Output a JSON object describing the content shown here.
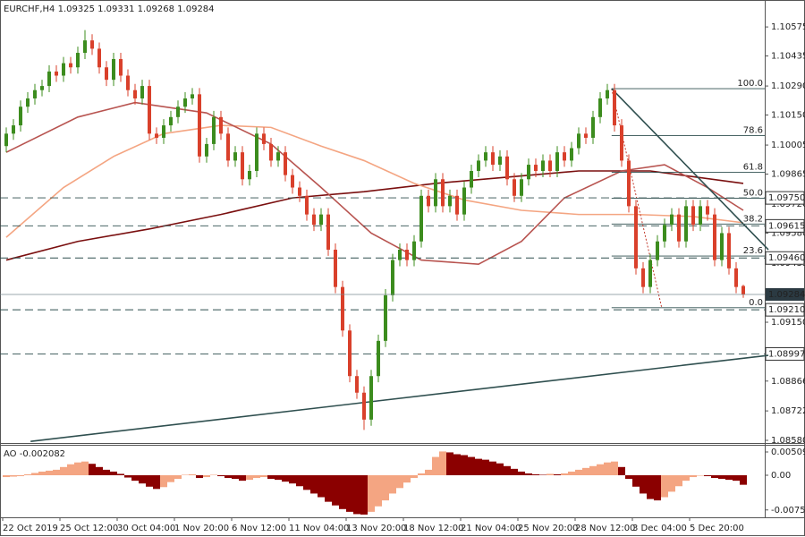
{
  "chart_data": [
    {
      "type": "candlestick",
      "title": "EURCHF,H4  1.09325 1.09331 1.09268 1.09284",
      "colors": {
        "up": "#3c8c1e",
        "down": "#d9402b",
        "trendline": "#2f4f4f",
        "level": "#2f4f4f",
        "fib": "#2f4f4f",
        "fib_base": "#c0392b"
      },
      "ylim": [
        1.08567,
        1.10705
      ],
      "yticks": [
        1.10575,
        1.10435,
        {
          "value": 1.1029,
          "label": "1.10290"
        },
        {
          "value": 1.1015,
          "label": "1.10150"
        },
        1.10005,
        1.09865,
        {
          "value": 1.0972,
          "label": "1.09720"
        },
        {
          "value": 1.0958,
          "label": "1.09580"
        },
        1.09435,
        {
          "value": 1.0915,
          "label": "1.09150"
        },
        1.08866,
        1.08722,
        {
          "value": 1.0858,
          "label": "1.08580"
        }
      ],
      "xticks": [
        {
          "value": 0,
          "label": "22 Oct 2019"
        },
        {
          "value": 8,
          "label": "25 Oct 12:00"
        },
        {
          "value": 16,
          "label": "30 Oct 04:00"
        },
        {
          "value": 24,
          "label": "1 Nov 20:00"
        },
        {
          "value": 32,
          "label": "6 Nov 12:00"
        },
        {
          "value": 40,
          "label": "11 Nov 04:00"
        },
        {
          "value": 48,
          "label": "13 Nov 20:00"
        },
        {
          "value": 56,
          "label": "18 Nov 12:00"
        },
        {
          "value": 64,
          "label": "21 Nov 04:00"
        },
        {
          "value": 72,
          "label": "25 Nov 20:00"
        },
        {
          "value": 80,
          "label": "28 Nov 12:00"
        },
        {
          "value": 88,
          "label": "3 Dec 04:00"
        },
        {
          "value": 96,
          "label": "5 Dec 20:00"
        }
      ],
      "ohlc": [
        [
          1.1,
          1.1009,
          1.0997,
          1.1006
        ],
        [
          1.1006,
          1.1013,
          1.1003,
          1.101
        ],
        [
          1.101,
          1.1022,
          1.1007,
          1.1019
        ],
        [
          1.1019,
          1.1026,
          1.1016,
          1.1023
        ],
        [
          1.1023,
          1.103,
          1.102,
          1.1027
        ],
        [
          1.1027,
          1.1032,
          1.1024,
          1.1029
        ],
        [
          1.1029,
          1.1039,
          1.1026,
          1.1036
        ],
        [
          1.1036,
          1.1039,
          1.1031,
          1.1034
        ],
        [
          1.1034,
          1.1043,
          1.1031,
          1.104
        ],
        [
          1.104,
          1.1043,
          1.1035,
          1.1038
        ],
        [
          1.1038,
          1.1048,
          1.1035,
          1.1045
        ],
        [
          1.1045,
          1.1056,
          1.1042,
          1.1051
        ],
        [
          1.1051,
          1.1054,
          1.1044,
          1.1047
        ],
        [
          1.1047,
          1.105,
          1.1035,
          1.1038
        ],
        [
          1.1038,
          1.1041,
          1.1029,
          1.1032
        ],
        [
          1.1032,
          1.1045,
          1.1029,
          1.1042
        ],
        [
          1.1042,
          1.1045,
          1.1031,
          1.1034
        ],
        [
          1.1034,
          1.1037,
          1.1024,
          1.1027
        ],
        [
          1.1027,
          1.103,
          1.102,
          1.1023
        ],
        [
          1.1023,
          1.1032,
          1.102,
          1.1029
        ],
        [
          1.1029,
          1.1032,
          1.1003,
          1.1006
        ],
        [
          1.1006,
          1.1009,
          1.1001,
          1.1004
        ],
        [
          1.1004,
          1.1013,
          1.1001,
          1.101
        ],
        [
          1.101,
          1.1017,
          1.1007,
          1.1014
        ],
        [
          1.1014,
          1.1022,
          1.1011,
          1.1019
        ],
        [
          1.1019,
          1.1026,
          1.1016,
          1.1023
        ],
        [
          1.1023,
          1.1028,
          1.102,
          1.1025
        ],
        [
          1.1025,
          1.1028,
          1.0992,
          1.0995
        ],
        [
          1.0995,
          1.1004,
          1.0992,
          1.1001
        ],
        [
          1.1001,
          1.1017,
          1.0998,
          1.1014
        ],
        [
          1.1014,
          1.1017,
          1.1003,
          1.1006
        ],
        [
          1.1006,
          1.1009,
          1.099,
          1.0993
        ],
        [
          1.0993,
          1.1,
          1.099,
          1.0997
        ],
        [
          1.0997,
          1.1,
          1.0981,
          1.0984
        ],
        [
          1.0984,
          1.0991,
          1.0981,
          1.0988
        ],
        [
          1.0988,
          1.1009,
          1.0985,
          1.1006
        ],
        [
          1.1006,
          1.1009,
          1.0998,
          1.1001
        ],
        [
          1.1001,
          1.1004,
          1.099,
          1.0993
        ],
        [
          1.0993,
          1.1,
          1.099,
          1.0997
        ],
        [
          1.0997,
          1.1,
          1.0983,
          1.0986
        ],
        [
          1.0986,
          1.0989,
          1.0977,
          1.098
        ],
        [
          1.098,
          1.0983,
          1.0973,
          1.0976
        ],
        [
          1.0976,
          1.0979,
          1.0964,
          1.0967
        ],
        [
          1.0967,
          1.097,
          1.0959,
          1.0962
        ],
        [
          1.0962,
          1.097,
          1.0959,
          1.0967
        ],
        [
          1.0967,
          1.097,
          1.0947,
          1.095
        ],
        [
          1.095,
          1.0953,
          1.0929,
          1.0932
        ],
        [
          1.0932,
          1.0935,
          1.0908,
          1.0911
        ],
        [
          1.0911,
          1.0914,
          1.0886,
          1.0889
        ],
        [
          1.0889,
          1.0892,
          1.0878,
          1.0881
        ],
        [
          1.0881,
          1.0884,
          1.0863,
          1.0868
        ],
        [
          1.0868,
          1.0892,
          1.0865,
          1.0889
        ],
        [
          1.0889,
          1.0909,
          1.0886,
          1.0906
        ],
        [
          1.0906,
          1.0931,
          1.0903,
          1.0928
        ],
        [
          1.0928,
          1.0948,
          1.0925,
          1.0945
        ],
        [
          1.0945,
          1.0953,
          1.0942,
          1.095
        ],
        [
          1.095,
          1.0953,
          1.0942,
          1.0945
        ],
        [
          1.0945,
          1.0957,
          1.0942,
          1.0954
        ],
        [
          1.0954,
          1.0979,
          1.0951,
          1.0976
        ],
        [
          1.0976,
          1.0979,
          1.0968,
          1.0971
        ],
        [
          1.0971,
          1.0987,
          1.0968,
          1.0984
        ],
        [
          1.0984,
          1.0987,
          1.0968,
          1.0971
        ],
        [
          1.0971,
          1.0979,
          1.0968,
          1.0976
        ],
        [
          1.0976,
          1.0979,
          1.0964,
          1.0967
        ],
        [
          1.0967,
          1.0983,
          1.0964,
          1.098
        ],
        [
          1.098,
          1.0991,
          1.0977,
          1.0988
        ],
        [
          1.0988,
          1.0996,
          1.0985,
          1.0993
        ],
        [
          1.0993,
          1.1,
          1.099,
          1.0997
        ],
        [
          1.0997,
          1.1,
          1.0988,
          1.0991
        ],
        [
          1.0991,
          1.0998,
          1.0988,
          1.0995
        ],
        [
          1.0995,
          1.0998,
          1.0981,
          1.0984
        ],
        [
          1.0984,
          1.0987,
          1.0973,
          1.0976
        ],
        [
          1.0976,
          1.0987,
          1.0973,
          1.0984
        ],
        [
          1.0984,
          1.0994,
          1.0981,
          1.0991
        ],
        [
          1.0991,
          1.0994,
          1.0985,
          1.0988
        ],
        [
          1.0988,
          1.0996,
          1.0985,
          1.0993
        ],
        [
          1.0993,
          1.0996,
          1.0985,
          1.0988
        ],
        [
          1.0988,
          1.1,
          1.0985,
          1.0997
        ],
        [
          1.0997,
          1.1,
          1.099,
          1.0993
        ],
        [
          1.0993,
          1.1002,
          1.099,
          1.0999
        ],
        [
          1.0999,
          1.1009,
          1.0996,
          1.1006
        ],
        [
          1.1006,
          1.1009,
          1.1001,
          1.1004
        ],
        [
          1.1004,
          1.1017,
          1.1001,
          1.1014
        ],
        [
          1.1014,
          1.1026,
          1.1011,
          1.1023
        ],
        [
          1.1023,
          1.103,
          1.102,
          1.1027
        ],
        [
          1.1027,
          1.103,
          1.1007,
          1.101
        ],
        [
          1.101,
          1.1013,
          1.099,
          1.0993
        ],
        [
          1.0993,
          1.0996,
          1.0968,
          1.0971
        ],
        [
          1.0971,
          1.0974,
          1.0938,
          1.0941
        ],
        [
          1.0941,
          1.0944,
          1.0929,
          1.0932
        ],
        [
          1.0932,
          1.0948,
          1.0929,
          1.0945
        ],
        [
          1.0945,
          1.0957,
          1.0942,
          1.0954
        ],
        [
          1.0954,
          1.0965,
          1.0951,
          1.0962
        ],
        [
          1.0962,
          1.097,
          1.0959,
          1.0967
        ],
        [
          1.0967,
          1.097,
          1.0951,
          1.0954
        ],
        [
          1.0954,
          1.0974,
          1.0951,
          1.0971
        ],
        [
          1.0971,
          1.0974,
          1.0959,
          1.0962
        ],
        [
          1.0962,
          1.0974,
          1.0959,
          1.0971
        ],
        [
          1.0971,
          1.0974,
          1.0964,
          1.0967
        ],
        [
          1.0967,
          1.097,
          1.0942,
          1.0945
        ],
        [
          1.0945,
          1.0961,
          1.0942,
          1.0958
        ],
        [
          1.0958,
          1.0961,
          1.0938,
          1.0941
        ],
        [
          1.0941,
          1.0944,
          1.0929,
          1.0932
        ],
        [
          1.09325,
          1.09331,
          1.09268,
          1.09284
        ]
      ],
      "moving_averages": [
        {
          "color": "#7a0f0f",
          "x": [
            0,
            10,
            20,
            30,
            40,
            50,
            60,
            70,
            80,
            90,
            103
          ],
          "values": [
            1.0945,
            1.0954,
            1.096,
            1.0967,
            1.0975,
            1.0978,
            1.0982,
            1.0985,
            1.0988,
            1.0988,
            1.0982
          ]
        },
        {
          "color": "#f4a582",
          "x": [
            0,
            8,
            15,
            22,
            30,
            37,
            44,
            50,
            57,
            64,
            72,
            80,
            88,
            96,
            103
          ],
          "values": [
            1.0956,
            1.098,
            1.0995,
            1.1006,
            1.101,
            1.1009,
            1.1,
            1.0993,
            1.0982,
            1.0974,
            1.0969,
            1.0967,
            1.0967,
            1.0966,
            1.0963
          ]
        },
        {
          "color": "#b85450",
          "x": [
            0,
            10,
            18,
            28,
            37,
            44,
            51,
            58,
            66,
            72,
            78,
            86,
            92,
            98,
            103
          ],
          "values": [
            1.0997,
            1.1014,
            1.1021,
            1.1016,
            1.1001,
            1.098,
            1.0958,
            1.0945,
            1.0943,
            1.0954,
            1.0975,
            1.0988,
            1.0991,
            1.098,
            1.0969
          ]
        }
      ],
      "levels": [
        {
          "value": 1.0975,
          "label": "1.09750"
        },
        {
          "value": 1.09615,
          "label": "1.09615"
        },
        {
          "value": 1.0946,
          "label": "1.09460"
        },
        {
          "value": 1.0921,
          "label": "1.09210"
        },
        {
          "value": 1.08997,
          "label": "1.08997"
        }
      ],
      "last_price": {
        "value": 1.09284,
        "label": "1.09284"
      },
      "fibonacci": {
        "high": 1.10277,
        "low": 1.0922,
        "x": [
          84.6,
          91.6
        ],
        "levels": [
          {
            "value": 100,
            "label": "100.0"
          },
          78.6,
          61.8,
          {
            "value": 50,
            "label": "50.0"
          },
          38.2,
          23.6,
          {
            "value": 0,
            "label": "0.0"
          }
        ]
      },
      "trendlines": [
        {
          "x": [
            3.4,
            106.5
          ],
          "y": [
            1.08575,
            1.0899
          ]
        },
        {
          "x": [
            84.6,
            106.5
          ],
          "y": [
            1.10277,
            1.095
          ]
        }
      ]
    },
    {
      "type": "bar",
      "title": "AO -0.002082",
      "colors": {
        "up": "#f4a582",
        "down": "#8b0000"
      },
      "ylim": [
        -0.0092,
        0.00646
      ],
      "yticks": [
        0.005091,
        {
          "value": 0,
          "label": "0.00"
        },
        -0.007589
      ],
      "values": [
        -0.0004,
        -0.0003,
        -0.0002,
        0.0002,
        0.0005,
        0.0008,
        0.001,
        0.0012,
        0.0018,
        0.0024,
        0.0028,
        0.003,
        0.0025,
        0.0018,
        0.0012,
        0.0008,
        0.0003,
        -0.0005,
        -0.0012,
        -0.0018,
        -0.0025,
        -0.003,
        -0.0026,
        -0.0015,
        -0.0008,
        0.0001,
        0.0002,
        -0.0006,
        -0.0004,
        0.0001,
        -0.0002,
        -0.0006,
        -0.0008,
        -0.0012,
        -0.001,
        -0.0006,
        -0.0004,
        -0.0008,
        -0.001,
        -0.0014,
        -0.0018,
        -0.0024,
        -0.0032,
        -0.004,
        -0.0048,
        -0.0058,
        -0.0066,
        -0.0074,
        -0.008,
        -0.0085,
        -0.0086,
        -0.008,
        -0.0068,
        -0.0055,
        -0.004,
        -0.0028,
        -0.0016,
        -0.0006,
        0.0004,
        0.0012,
        0.004,
        0.0052,
        0.005,
        0.0046,
        0.0044,
        0.004,
        0.0036,
        0.0034,
        0.003,
        0.0026,
        0.002,
        0.0014,
        0.0008,
        0.0004,
        0.0002,
        0.0001,
        0.0003,
        0.0002,
        0.0004,
        0.0008,
        0.0012,
        0.0016,
        0.002,
        0.0024,
        0.0028,
        0.003,
        0.0018,
        -0.0008,
        -0.0025,
        -0.004,
        -0.0052,
        -0.0055,
        -0.0048,
        -0.0036,
        -0.0024,
        -0.0012,
        -0.0004,
        0.0,
        -0.0002,
        -0.0006,
        -0.0008,
        -0.001,
        -0.0012,
        -0.002082
      ]
    }
  ]
}
